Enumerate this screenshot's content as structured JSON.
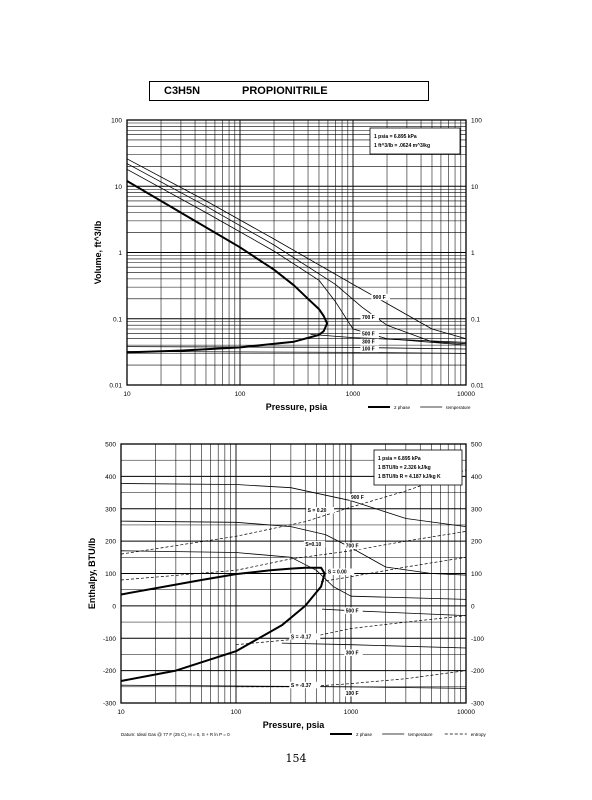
{
  "header": {
    "formula": "C3H5N",
    "name": "PROPIONITRILE"
  },
  "page_number": "154",
  "chart_data": [
    {
      "type": "line",
      "xlabel": "Pressure,  psia",
      "ylabel": "Volume, ft^3/lb",
      "x_scale": "log",
      "y_scale": "log",
      "xlim": [
        10,
        10000
      ],
      "ylim": [
        0.01,
        100
      ],
      "x_ticks": [
        "10",
        "100",
        "1000",
        "10000"
      ],
      "y_ticks": [
        "100",
        "10",
        "1",
        "0.1",
        "0.01"
      ],
      "grid": true,
      "info_box": [
        "1 psia = 6.895 kPa",
        "1 ft^3/lb = .0624 m^3/kg"
      ],
      "legend": [
        "2 phase",
        "temperature"
      ],
      "legend_position": "bottom-right",
      "series": [
        {
          "style": "2 phase",
          "points": [
            [
              10,
              12
            ],
            [
              30,
              4
            ],
            [
              100,
              1.2
            ],
            [
              200,
              0.55
            ],
            [
              300,
              0.32
            ],
            [
              400,
              0.2
            ],
            [
              500,
              0.14
            ],
            [
              550,
              0.11
            ],
            [
              590,
              0.085
            ],
            [
              550,
              0.065
            ],
            [
              500,
              0.057
            ],
            [
              300,
              0.045
            ],
            [
              100,
              0.037
            ],
            [
              30,
              0.033
            ],
            [
              10,
              0.031
            ]
          ]
        },
        {
          "label": "900 F",
          "style": "temperature",
          "points": [
            [
              10,
              26
            ],
            [
              50,
              6
            ],
            [
              200,
              1.6
            ],
            [
              1000,
              0.33
            ],
            [
              2000,
              0.17
            ],
            [
              5000,
              0.07
            ],
            [
              10000,
              0.05
            ]
          ]
        },
        {
          "label": "700 F",
          "style": "temperature",
          "points": [
            [
              10,
              22
            ],
            [
              50,
              5
            ],
            [
              200,
              1.3
            ],
            [
              700,
              0.33
            ],
            [
              1200,
              0.15
            ],
            [
              2000,
              0.08
            ],
            [
              5000,
              0.045
            ],
            [
              10000,
              0.042
            ]
          ]
        },
        {
          "style": "temperature",
          "points": [
            [
              10,
              18
            ],
            [
              50,
              4
            ],
            [
              200,
              1.05
            ],
            [
              500,
              0.38
            ],
            [
              700,
              0.18
            ],
            [
              1000,
              0.07
            ],
            [
              2000,
              0.05
            ],
            [
              10000,
              0.04
            ]
          ]
        },
        {
          "label": "500 F",
          "style": "temperature",
          "points": [
            [
              420,
              0.058
            ],
            [
              1000,
              0.052
            ],
            [
              10000,
              0.044
            ]
          ]
        },
        {
          "label": "300 F",
          "style": "temperature",
          "points": [
            [
              10,
              0.038
            ],
            [
              1000,
              0.037
            ],
            [
              10000,
              0.035
            ]
          ]
        },
        {
          "label": "100 F",
          "style": "temperature",
          "points": [
            [
              10,
              0.032
            ],
            [
              1000,
              0.031
            ],
            [
              10000,
              0.03
            ]
          ]
        }
      ],
      "curve_labels": [
        {
          "text": "900 F",
          "x": 1500,
          "y": 0.2
        },
        {
          "text": "700 F",
          "x": 1200,
          "y": 0.1
        },
        {
          "text": "500 F",
          "x": 1200,
          "y": 0.056
        },
        {
          "text": "300 F",
          "x": 1200,
          "y": 0.042
        },
        {
          "text": "100 F",
          "x": 1200,
          "y": 0.033
        }
      ]
    },
    {
      "type": "line",
      "xlabel": "Pressure,  psia",
      "ylabel": "Enthalpy, BTU/lb",
      "x_scale": "log",
      "y_scale": "linear",
      "xlim": [
        10,
        10000
      ],
      "ylim": [
        -300,
        500
      ],
      "x_ticks": [
        "10",
        "100",
        "1000",
        "10000"
      ],
      "y_ticks": [
        "500",
        "400",
        "300",
        "200",
        "100",
        "0",
        "-100",
        "-200",
        "-300"
      ],
      "grid": true,
      "info_box": [
        "1 psia = 6.895 kPa",
        "1 BTU/lb = 2.326 kJ/kg",
        "1 BTU/lb R = 4.187 kJ/kg K"
      ],
      "legend": [
        "2 phase",
        "temperature",
        "entropy"
      ],
      "legend_position": "bottom-right",
      "footnote": "Datum: Ideal Gas @ 77 F (25 C),  H = 0,  S + R ln P = 0",
      "series": [
        {
          "style": "2 phase",
          "points": [
            [
              10,
              35
            ],
            [
              50,
              80
            ],
            [
              100,
              98
            ],
            [
              200,
              110
            ],
            [
              300,
              115
            ],
            [
              400,
              118
            ],
            [
              550,
              118
            ],
            [
              590,
              100
            ],
            [
              550,
              60
            ],
            [
              400,
              0
            ],
            [
              250,
              -60
            ],
            [
              100,
              -140
            ],
            [
              30,
              -200
            ],
            [
              10,
              -232
            ]
          ]
        },
        {
          "label": "900 F",
          "style": "temperature",
          "points": [
            [
              10,
              378
            ],
            [
              100,
              375
            ],
            [
              300,
              365
            ],
            [
              1000,
              325
            ],
            [
              3000,
              270
            ],
            [
              10000,
              245
            ]
          ]
        },
        {
          "label": "700 F",
          "style": "temperature",
          "points": [
            [
              10,
              262
            ],
            [
              100,
              258
            ],
            [
              300,
              245
            ],
            [
              600,
              220
            ],
            [
              1000,
              180
            ],
            [
              2000,
              120
            ],
            [
              5000,
              100
            ],
            [
              10000,
              95
            ]
          ]
        },
        {
          "style": "temperature",
          "points": [
            [
              10,
              170
            ],
            [
              100,
              165
            ],
            [
              300,
              150
            ],
            [
              500,
              110
            ],
            [
              700,
              60
            ],
            [
              1000,
              30
            ],
            [
              10000,
              20
            ]
          ]
        },
        {
          "label": "500 F",
          "style": "temperature",
          "points": [
            [
              560,
              -10
            ],
            [
              1000,
              -15
            ],
            [
              10000,
              -30
            ]
          ]
        },
        {
          "label": "300 F",
          "style": "temperature",
          "points": [
            [
              250,
              -115
            ],
            [
              1000,
              -120
            ],
            [
              10000,
              -130
            ]
          ]
        },
        {
          "label": "100 F",
          "style": "temperature",
          "points": [
            [
              10,
              -245
            ],
            [
              1000,
              -250
            ],
            [
              10000,
              -255
            ]
          ]
        },
        {
          "label": "S=0.20",
          "style": "entropy",
          "points": [
            [
              10,
              160
            ],
            [
              100,
              215
            ],
            [
              400,
              260
            ],
            [
              1000,
              305
            ],
            [
              3000,
              355
            ],
            [
              10000,
              420
            ]
          ]
        },
        {
          "label": "S=0.10",
          "style": "entropy",
          "points": [
            [
              10,
              80
            ],
            [
              100,
              110
            ],
            [
              300,
              145
            ],
            [
              1000,
              170
            ],
            [
              3000,
              200
            ],
            [
              10000,
              230
            ]
          ]
        },
        {
          "label": "S=0.00",
          "style": "entropy",
          "points": [
            [
              550,
              75
            ],
            [
              1000,
              90
            ],
            [
              3000,
              120
            ],
            [
              10000,
              150
            ]
          ]
        },
        {
          "label": "S=-0.17",
          "style": "entropy",
          "points": [
            [
              100,
              -120
            ],
            [
              400,
              -100
            ],
            [
              1000,
              -70
            ],
            [
              3000,
              -50
            ],
            [
              10000,
              -30
            ]
          ]
        },
        {
          "label": "S=-0.37",
          "style": "entropy",
          "points": [
            [
              100,
              -250
            ],
            [
              400,
              -250
            ],
            [
              1000,
              -240
            ],
            [
              3000,
              -225
            ],
            [
              10000,
              -200
            ]
          ]
        }
      ],
      "curve_labels": [
        {
          "text": "900 F",
          "x": 1000,
          "y": 330
        },
        {
          "text": "700 F",
          "x": 900,
          "y": 180
        },
        {
          "text": "500 F",
          "x": 900,
          "y": -20
        },
        {
          "text": "300 F",
          "x": 900,
          "y": -150
        },
        {
          "text": "100 F",
          "x": 900,
          "y": -275
        },
        {
          "text": "S = 0.20",
          "x": 420,
          "y": 290
        },
        {
          "text": "S=0.10",
          "x": 400,
          "y": 185
        },
        {
          "text": "S = 0.00",
          "x": 630,
          "y": 100
        },
        {
          "text": "S = -0.17",
          "x": 300,
          "y": -100
        },
        {
          "text": "S = -0.37",
          "x": 300,
          "y": -250
        }
      ]
    }
  ]
}
